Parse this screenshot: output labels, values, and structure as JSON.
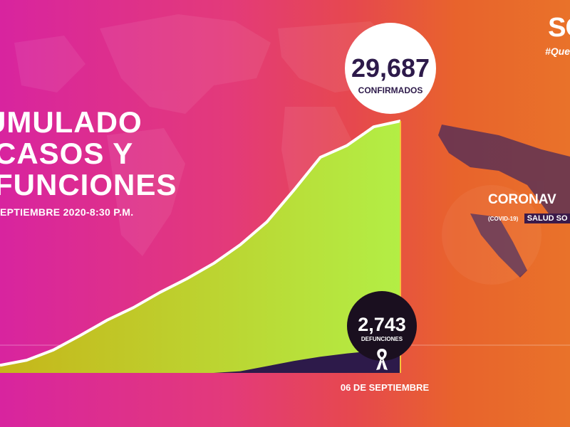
{
  "header": {
    "title_lines": [
      "UMULADO",
      "CASOS Y",
      "FUNCIONES"
    ],
    "subtitle": "EPTIEMBRE 2020-8:30 P.M."
  },
  "branding": {
    "logo": "SO",
    "hashtag": "#Que",
    "corona_label": "CORONAV",
    "covid_tag": "(COVID-19)",
    "salud_tag": "SALUD SO"
  },
  "colors": {
    "confirmed_fill_start": "#c6b61a",
    "confirmed_fill_end": "#b3ee45",
    "deaths_fill": "#2d1a4a",
    "line": "#ffffff",
    "accent_line": "#f2c43a"
  },
  "icons": [
    "mourning-ribbon-icon"
  ],
  "chart_data": {
    "type": "area",
    "x_label_end": "06 DE SEPTIEMBRE",
    "series": [
      {
        "key": "confirmed",
        "value_label": "29,687",
        "caption": "CONFIRMADOS",
        "y": [
          0.9,
          1.5,
          2.7,
          4.4,
          6.2,
          7.7,
          9.5,
          11.1,
          12.9,
          15.1,
          17.8,
          21.5,
          25.4,
          26.8,
          29.0,
          29.687
        ]
      },
      {
        "key": "deaths",
        "value_label": "2,743",
        "caption": "DEFUNCIONES",
        "y": [
          0,
          0,
          0,
          0,
          0,
          0,
          0,
          0,
          0,
          0.2,
          0.8,
          1.4,
          1.9,
          2.3,
          2.6,
          2.743
        ]
      }
    ]
  }
}
